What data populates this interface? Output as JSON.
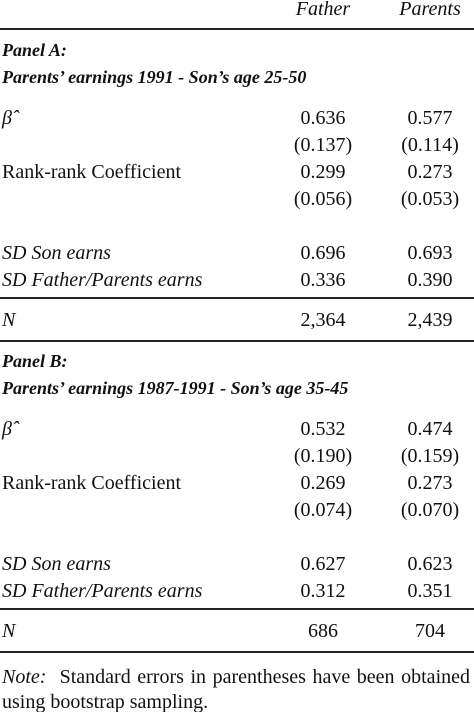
{
  "header": {
    "columns": [
      "Father",
      "Parents"
    ]
  },
  "panels": [
    {
      "label": "Panel A:",
      "title": "Parents’ earnings 1991 - Son’s age 25-50",
      "coefficients": [
        {
          "label": "β̂",
          "italic": true,
          "values": [
            "0.636",
            "0.577"
          ]
        },
        {
          "values": [
            "(0.137)",
            "(0.114)"
          ]
        },
        {
          "label": "Rank-rank Coefficient",
          "values": [
            "0.299",
            "0.273"
          ]
        },
        {
          "values": [
            "(0.056)",
            "(0.053)"
          ]
        }
      ],
      "dispersion": [
        {
          "label": "SD Son earns",
          "italic": true,
          "values": [
            "0.696",
            "0.693"
          ]
        },
        {
          "label": "SD Father/Parents earns",
          "italic": true,
          "values": [
            "0.336",
            "0.390"
          ]
        }
      ],
      "n": {
        "label": "N",
        "italic": true,
        "values": [
          "2,364",
          "2,439"
        ]
      }
    },
    {
      "label": "Panel B:",
      "title": "Parents’ earnings 1987-1991 - Son’s age 35-45",
      "coefficients": [
        {
          "label": "β̂",
          "italic": true,
          "values": [
            "0.532",
            "0.474"
          ]
        },
        {
          "values": [
            "(0.190)",
            "(0.159)"
          ]
        },
        {
          "label": "Rank-rank Coefficient",
          "values": [
            "0.269",
            "0.273"
          ]
        },
        {
          "values": [
            "(0.074)",
            "(0.070)"
          ]
        }
      ],
      "dispersion": [
        {
          "label": "SD Son earns",
          "italic": true,
          "values": [
            "0.627",
            "0.623"
          ]
        },
        {
          "label": "SD Father/Parents earns",
          "italic": true,
          "values": [
            "0.312",
            "0.351"
          ]
        }
      ],
      "n": {
        "label": "N",
        "italic": true,
        "values": [
          "686",
          "704"
        ]
      }
    }
  ],
  "note": {
    "label": "Note:",
    "text": "Standard errors in parentheses have been obtained using bootstrap sampling."
  }
}
